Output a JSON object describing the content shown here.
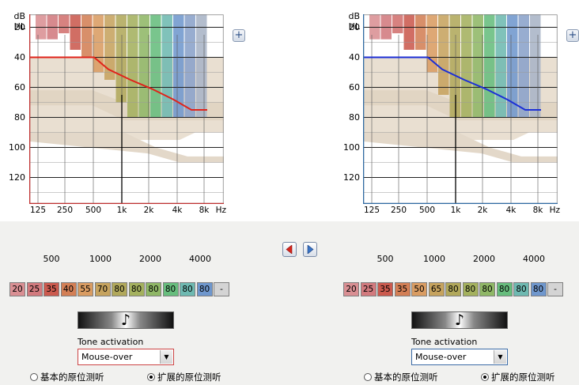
{
  "left_chart": {
    "y_unit_top": "dB",
    "y_unit_bottom": "HL",
    "y_ticks": [
      "20",
      "40",
      "60",
      "80",
      "100",
      "120"
    ],
    "x_ticks": [
      "125",
      "250",
      "500",
      "1k",
      "2k",
      "4k",
      "8k"
    ],
    "x_unit": "Hz",
    "line_color": "#e0231a",
    "frame_color": "#c03030",
    "threshold_db": [
      40,
      40,
      40,
      48,
      55,
      61,
      68,
      75,
      75
    ]
  },
  "right_chart": {
    "y_unit_top": "dB",
    "y_unit_bottom": "HL",
    "y_ticks": [
      "20",
      "40",
      "60",
      "80",
      "100",
      "120"
    ],
    "x_ticks": [
      "125",
      "250",
      "500",
      "1k",
      "2k",
      "4k",
      "8k"
    ],
    "x_unit": "Hz",
    "line_color": "#1c2fd6",
    "frame_color": "#2f6aa3",
    "threshold_db": [
      40,
      40,
      40,
      48,
      55,
      61,
      68,
      75,
      75
    ]
  },
  "zoom_left_icon": "zoom-plus-icon",
  "zoom_right_icon": "zoom-plus-icon",
  "nav": {
    "left_icon": "arrow-left-icon",
    "right_icon": "arrow-right-icon"
  },
  "left_panel": {
    "freq_labels": [
      "500",
      "1000",
      "2000",
      "4000"
    ],
    "cells": [
      "20",
      "25",
      "35",
      "40",
      "55",
      "70",
      "80",
      "80",
      "80",
      "80",
      "80",
      "80",
      "-"
    ],
    "tone_icon": "music-note-icon",
    "tone_activation_label": "Tone activation",
    "tone_activation_value": "Mouse-over",
    "radio_basic": "基本的原位测听",
    "radio_extended": "扩展的原位测听",
    "selected": "extended"
  },
  "right_panel": {
    "freq_labels": [
      "500",
      "1000",
      "2000",
      "4000"
    ],
    "cells": [
      "20",
      "25",
      "35",
      "35",
      "50",
      "65",
      "80",
      "80",
      "80",
      "80",
      "80",
      "80",
      "-"
    ],
    "tone_icon": "music-note-icon",
    "tone_activation_label": "Tone activation",
    "tone_activation_value": "Mouse-over",
    "radio_basic": "基本的原位测听",
    "radio_extended": "扩展的原位测听",
    "selected": "extended"
  },
  "colors": {
    "band_colors": [
      "#d98f93",
      "#d27a7e",
      "#d2716e",
      "#cb5a4e",
      "#d37f55",
      "#d99c62",
      "#c6a35e",
      "#b1a85b",
      "#a4b15e",
      "#8fb766",
      "#67bd7d",
      "#6eb9b1",
      "#6f97cd",
      "#8aa2c9",
      "#a9b4c6"
    ],
    "cell_colors": [
      "#d98f93",
      "#d27a7e",
      "#cb5a4e",
      "#d37f55",
      "#d99c62",
      "#c6a35e",
      "#b1a85b",
      "#a4b15e",
      "#8fb766",
      "#67bd7d",
      "#6eb9b1",
      "#6f97cd"
    ]
  }
}
